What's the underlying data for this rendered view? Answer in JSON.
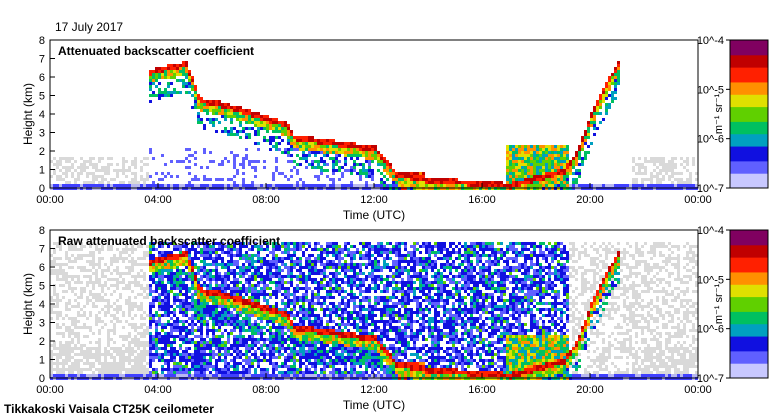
{
  "date_label": "17 July 2017",
  "footer": "Tikkakoski Vaisala CT25K ceilometer",
  "colors": {
    "background_noise": "#d9d9d9",
    "ground_low": "#b8b8f0",
    "palette": [
      "#c8c8ff",
      "#6060ff",
      "#1010e0",
      "#00a0c0",
      "#00c060",
      "#60d000",
      "#e0e000",
      "#ff9000",
      "#ff2000",
      "#c00000",
      "#800060"
    ]
  },
  "chart_data": [
    {
      "type": "heatmap",
      "title": "Attenuated backscatter coefficient",
      "xlabel": "Time (UTC)",
      "ylabel": "Height (km)",
      "xlim": [
        "00:00",
        "00:00"
      ],
      "ylim": [
        0,
        8
      ],
      "x_tick_labels": [
        "00:00",
        "04:00",
        "08:00",
        "12:00",
        "16:00",
        "20:00",
        "00:00"
      ],
      "y_tick_labels": [
        "0",
        "1",
        "2",
        "3",
        "4",
        "5",
        "6",
        "7",
        "8"
      ],
      "colorbar": {
        "scale": "log",
        "range": [
          1e-07,
          0.0001
        ],
        "tick_labels": [
          "10^-7",
          "10^-6",
          "10^-5",
          "10^-4"
        ],
        "unit_label": "m⁻¹ sr⁻¹"
      },
      "cloud_layer": {
        "x_hours": [
          3.6,
          4.0,
          4.5,
          5.0,
          5.5,
          6.0,
          7.0,
          8.0,
          8.7,
          9.0,
          10.0,
          11.0,
          12.0,
          12.8,
          14.0,
          16.0,
          17.0,
          19.0,
          19.5,
          20.0,
          20.5,
          21.0
        ],
        "height_km": [
          6.3,
          6.5,
          6.6,
          6.8,
          4.8,
          4.7,
          4.3,
          3.8,
          3.5,
          2.8,
          2.6,
          2.4,
          2.2,
          0.8,
          0.5,
          0.3,
          0.2,
          1.0,
          2.0,
          4.0,
          5.5,
          6.8
        ]
      }
    },
    {
      "type": "heatmap",
      "title": "Raw attenuated backscatter coefficient",
      "xlabel": "Time (UTC)",
      "ylabel": "Height (km)",
      "xlim": [
        "00:00",
        "00:00"
      ],
      "ylim": [
        0,
        8
      ],
      "x_tick_labels": [
        "00:00",
        "04:00",
        "08:00",
        "12:00",
        "16:00",
        "20:00",
        "00:00"
      ],
      "y_tick_labels": [
        "0",
        "1",
        "2",
        "3",
        "4",
        "5",
        "6",
        "7",
        "8"
      ],
      "colorbar": {
        "scale": "log",
        "range": [
          1e-07,
          0.0001
        ],
        "tick_labels": [
          "10^-7",
          "10^-6",
          "10^-5",
          "10^-4"
        ],
        "unit_label": "m⁻¹ sr⁻¹"
      },
      "cloud_layer": {
        "x_hours": [
          3.6,
          4.0,
          4.5,
          5.0,
          5.5,
          6.0,
          7.0,
          8.0,
          8.7,
          9.0,
          10.0,
          11.0,
          12.0,
          12.8,
          14.0,
          16.0,
          17.0,
          19.0,
          19.5,
          20.0,
          20.5,
          21.0
        ],
        "height_km": [
          6.3,
          6.5,
          6.6,
          6.8,
          4.8,
          4.7,
          4.3,
          3.8,
          3.5,
          2.8,
          2.6,
          2.4,
          2.2,
          0.8,
          0.5,
          0.3,
          0.2,
          1.0,
          2.0,
          4.0,
          5.5,
          6.8
        ]
      }
    }
  ]
}
